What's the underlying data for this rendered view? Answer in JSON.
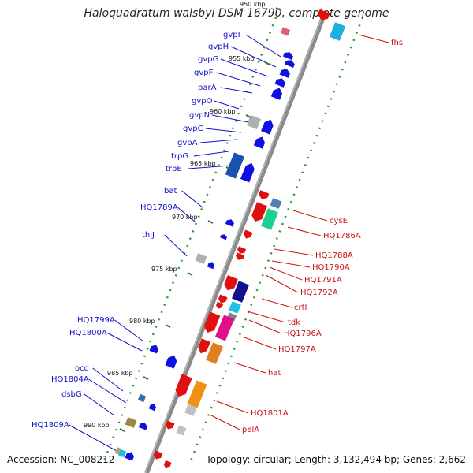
{
  "title": "Haloquadratum walsbyi DSM 16790, complete genome",
  "footer": {
    "accession": "Accession: NC_008212",
    "summary": "Topology: circular; Length: 3,132,494 bp; Genes: 2,662"
  },
  "colors": {
    "forward_label": "#1010c8",
    "reverse_label": "#c81010",
    "backbone": "#888888"
  },
  "ticks": [
    "950 kbp",
    "955 kbp",
    "960 kbp",
    "965 kbp",
    "970 kbp",
    "975 kbp",
    "980 kbp",
    "985 kbp",
    "990 kbp"
  ],
  "left_labels": [
    "gvpI",
    "gvpH",
    "gvpG",
    "gvpF",
    "parA",
    "gvpO",
    "gvpN",
    "gvpC",
    "gvpA",
    "trpG",
    "trpE",
    "bat",
    "HQ1789A",
    "thiJ",
    "HQ1799A",
    "HQ1800A",
    "ocd",
    "HQ1804A",
    "dsbG",
    "HQ1809A"
  ],
  "right_labels": [
    "fhs",
    "cysE",
    "HQ1786A",
    "HQ1788A",
    "HQ1790A",
    "HQ1791A",
    "HQ1792A",
    "crtI",
    "tdk",
    "HQ1796A",
    "HQ1797A",
    "hat",
    "HQ1801A",
    "pelA"
  ]
}
